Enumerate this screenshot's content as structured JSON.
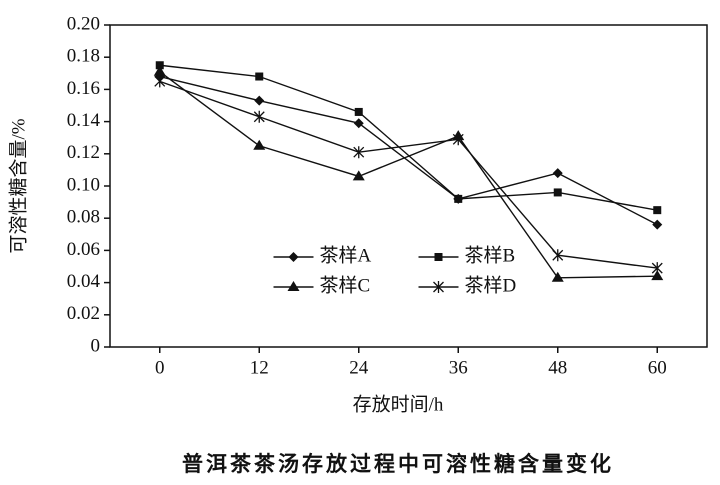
{
  "chart_data": {
    "type": "line",
    "title": "普洱茶茶汤存放过程中可溶性糖含量变化",
    "xlabel": "存放时间/h",
    "ylabel": "可溶性糖含量/%",
    "x": [
      0,
      12,
      24,
      36,
      48,
      60
    ],
    "xlim": [
      -6,
      66
    ],
    "xticks": [
      0,
      12,
      24,
      36,
      48,
      60
    ],
    "ylim": [
      0,
      0.2
    ],
    "yticks": [
      0,
      0.02,
      0.04,
      0.06,
      0.08,
      {
        "value": 0.1,
        "label": "0.10"
      },
      0.12,
      0.14,
      0.16,
      0.18,
      {
        "value": 0.2,
        "label": "0.20"
      }
    ],
    "legend": "lower center",
    "series": [
      {
        "name": "茶样A",
        "color": "#111111",
        "marker": "diamond",
        "values": [
          0.168,
          0.153,
          0.139,
          0.092,
          0.108,
          0.076
        ]
      },
      {
        "name": "茶样B",
        "color": "#111111",
        "marker": "square",
        "values": [
          0.175,
          0.168,
          0.146,
          0.092,
          0.096,
          0.085
        ]
      },
      {
        "name": "茶样C",
        "color": "#111111",
        "marker": "triangle",
        "values": [
          0.171,
          0.125,
          0.106,
          0.131,
          0.043,
          0.044
        ]
      },
      {
        "name": "茶样D",
        "color": "#111111",
        "marker": "asterisk",
        "values": [
          0.165,
          0.143,
          0.121,
          0.129,
          0.057,
          0.049
        ]
      }
    ]
  }
}
